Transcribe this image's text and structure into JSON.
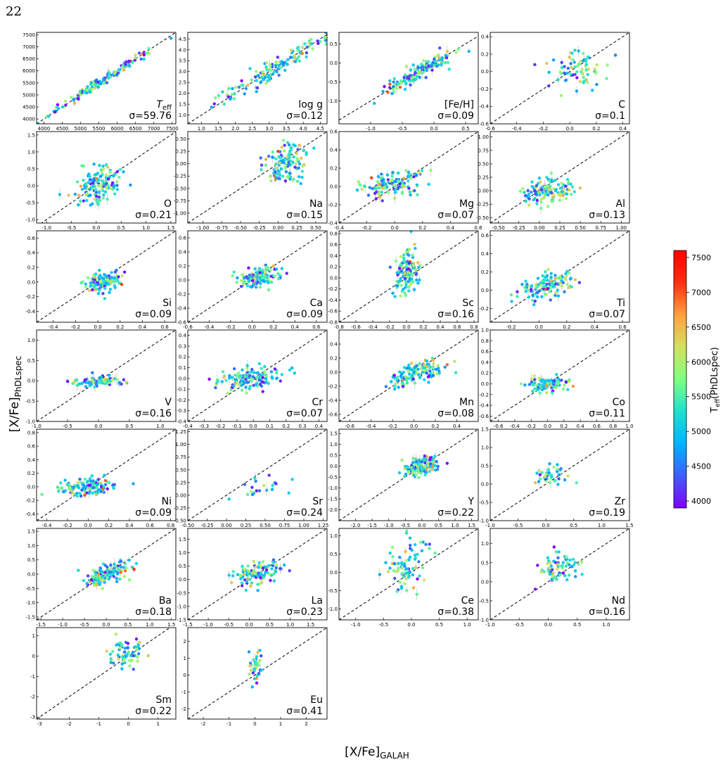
{
  "page": {
    "number": "22"
  },
  "figure": {
    "ylabel": "[X/Fe]",
    "ylabel_sub": "PhDLspec",
    "xlabel": "[X/Fe]",
    "xlabel_sub": "GALAH"
  },
  "colorbar": {
    "label": "T",
    "label_sub": "eff",
    "label_suffix": "(PhDLspec)",
    "range": [
      3900,
      7600
    ],
    "ticks": [
      "4000",
      "4500",
      "5000",
      "5500",
      "6000",
      "6500",
      "7000",
      "7500"
    ],
    "colors": [
      "#7f00ff",
      "#3f5efb",
      "#00b4ff",
      "#20e0d0",
      "#7fff7f",
      "#d4e060",
      "#ffa040",
      "#ff3010",
      "#ff0000"
    ]
  },
  "chart_data": [
    {
      "type": "scatter",
      "label": "T",
      "label_sub": "eff",
      "sigma": "σ=59.76",
      "xlim": [
        3800,
        7600
      ],
      "ylim": [
        3800,
        7600
      ],
      "xticks": [
        "4000",
        "4500",
        "5000",
        "5500",
        "6000",
        "6500",
        "7000",
        "7500"
      ],
      "yticks": [
        "4000",
        "4500",
        "5000",
        "5500",
        "6000",
        "6500",
        "7000",
        "7500"
      ],
      "center": [
        5500,
        5500
      ],
      "spread": [
        800,
        800
      ],
      "corr": 0.99,
      "n": 140
    },
    {
      "type": "scatter",
      "label": "log g",
      "sigma": "σ=0.12",
      "xlim": [
        0.6,
        4.7
      ],
      "ylim": [
        0.6,
        4.8
      ],
      "xticks": [
        "1.0",
        "1.5",
        "2.0",
        "2.5",
        "3.0",
        "3.5",
        "4.0",
        "4.5"
      ],
      "yticks": [
        "1.0",
        "1.5",
        "2.0",
        "2.5",
        "3.0",
        "3.5",
        "4.0",
        "4.5"
      ],
      "center": [
        3.3,
        3.3
      ],
      "spread": [
        0.9,
        0.9
      ],
      "corr": 0.97,
      "n": 140
    },
    {
      "type": "scatter",
      "label": "[Fe/H]",
      "sigma": "σ=0.09",
      "xlim": [
        -1.5,
        0.7
      ],
      "ylim": [
        -1.6,
        0.8
      ],
      "xticks": [
        "-1.0",
        "-0.5",
        "0.0",
        "0.5"
      ],
      "yticks": [
        "-1.0",
        "-0.5",
        "0.0",
        "0.5"
      ],
      "center": [
        -0.2,
        -0.2
      ],
      "spread": [
        0.3,
        0.3
      ],
      "corr": 0.92,
      "n": 130
    },
    {
      "type": "scatter",
      "label": "C",
      "sigma": "σ=0.1",
      "xlim": [
        -0.6,
        0.45
      ],
      "ylim": [
        -0.6,
        0.45
      ],
      "xticks": [
        "-0.6",
        "-0.4",
        "-0.2",
        "0.0",
        "0.2",
        "0.4"
      ],
      "yticks": [
        "-0.6",
        "-0.4",
        "-0.2",
        "0.0",
        "0.2",
        "0.4"
      ],
      "center": [
        0.05,
        0.02
      ],
      "spread": [
        0.1,
        0.12
      ],
      "corr": 0.2,
      "n": 70
    },
    {
      "type": "scatter",
      "label": "O",
      "sigma": "σ=0.21",
      "xlim": [
        -1.2,
        1.6
      ],
      "ylim": [
        -1.1,
        1.6
      ],
      "xticks": [
        "-1.0",
        "-0.5",
        "0.0",
        "0.5",
        "1.0",
        "1.5"
      ],
      "yticks": [
        "-1.0",
        "-0.5",
        "0.0",
        "0.5",
        "1.0",
        "1.5"
      ],
      "center": [
        0.05,
        0.0
      ],
      "spread": [
        0.25,
        0.3
      ],
      "corr": 0.3,
      "n": 130
    },
    {
      "type": "scatter",
      "label": "Na",
      "sigma": "σ=0.15",
      "xlim": [
        -1.2,
        0.65
      ],
      "ylim": [
        -1.2,
        0.65
      ],
      "xticks": [
        "-1.00",
        "-0.75",
        "-0.50",
        "-0.25",
        "0.00",
        "0.25",
        "0.50"
      ],
      "yticks": [
        "-1.00",
        "-0.75",
        "-0.50",
        "-0.25",
        "0.00",
        "0.25",
        "0.50"
      ],
      "center": [
        0.1,
        0.0
      ],
      "spread": [
        0.12,
        0.2
      ],
      "corr": 0.2,
      "n": 120
    },
    {
      "type": "scatter",
      "label": "Mg",
      "sigma": "σ=0.07",
      "xlim": [
        -0.4,
        0.6
      ],
      "ylim": [
        -0.4,
        0.6
      ],
      "xticks": [
        "-0.4",
        "-0.2",
        "0.0",
        "0.2",
        "0.4",
        "0.6"
      ],
      "yticks": [
        "-0.4",
        "-0.2",
        "0.0",
        "0.2",
        "0.4",
        "0.6"
      ],
      "center": [
        0.0,
        0.03
      ],
      "spread": [
        0.12,
        0.07
      ],
      "corr": 0.4,
      "n": 130
    },
    {
      "type": "scatter",
      "label": "Al",
      "sigma": "σ=0.13",
      "xlim": [
        -0.6,
        1.1
      ],
      "ylim": [
        -0.6,
        1.1
      ],
      "xticks": [
        "-0.50",
        "-0.25",
        "0.00",
        "0.25",
        "0.50",
        "0.75",
        "1.00"
      ],
      "yticks": [
        "-0.50",
        "-0.25",
        "0.00",
        "0.25",
        "0.50",
        "0.75",
        "1.00"
      ],
      "center": [
        0.1,
        0.0
      ],
      "spread": [
        0.15,
        0.12
      ],
      "corr": 0.3,
      "n": 130
    },
    {
      "type": "scatter",
      "label": "Si",
      "sigma": "σ=0.09",
      "xlim": [
        -0.55,
        0.7
      ],
      "ylim": [
        -0.55,
        0.7
      ],
      "xticks": [
        "-0.4",
        "-0.2",
        "0.0",
        "0.2",
        "0.4",
        "0.6"
      ],
      "yticks": [
        "-0.4",
        "-0.2",
        "0.0",
        "0.2",
        "0.4",
        "0.6"
      ],
      "center": [
        0.03,
        0.0
      ],
      "spread": [
        0.08,
        0.07
      ],
      "corr": 0.3,
      "n": 120
    },
    {
      "type": "scatter",
      "label": "Ca",
      "sigma": "σ=0.09",
      "xlim": [
        -0.6,
        0.7
      ],
      "ylim": [
        -0.6,
        0.7
      ],
      "xticks": [
        "-0.6",
        "-0.4",
        "-0.2",
        "0.0",
        "0.2",
        "0.4",
        "0.6"
      ],
      "yticks": [
        "-0.6",
        "-0.4",
        "-0.2",
        "0.0",
        "0.2",
        "0.4",
        "0.6"
      ],
      "center": [
        0.05,
        0.02
      ],
      "spread": [
        0.1,
        0.07
      ],
      "corr": 0.3,
      "n": 120
    },
    {
      "type": "scatter",
      "label": "Sc",
      "sigma": "σ=0.16",
      "xlim": [
        -0.8,
        0.85
      ],
      "ylim": [
        -0.8,
        0.85
      ],
      "xticks": [
        "-0.8",
        "-0.6",
        "-0.4",
        "-0.2",
        "0.0",
        "0.2",
        "0.4",
        "0.6",
        "0.8"
      ],
      "yticks": [
        "-0.8",
        "-0.6",
        "-0.4",
        "-0.2",
        "0.0",
        "0.2",
        "0.4",
        "0.6",
        "0.8"
      ],
      "center": [
        0.0,
        0.1
      ],
      "spread": [
        0.07,
        0.2
      ],
      "corr": 0.2,
      "n": 130
    },
    {
      "type": "scatter",
      "label": "Ti",
      "sigma": "σ=0.07",
      "xlim": [
        -0.35,
        0.65
      ],
      "ylim": [
        -0.35,
        0.65
      ],
      "xticks": [
        "-0.2",
        "0.0",
        "0.2",
        "0.4",
        "0.6"
      ],
      "yticks": [
        "-0.2",
        "0.0",
        "0.2",
        "0.4",
        "0.6"
      ],
      "center": [
        0.05,
        0.05
      ],
      "spread": [
        0.1,
        0.08
      ],
      "corr": 0.5,
      "n": 120
    },
    {
      "type": "scatter",
      "label": "V",
      "sigma": "σ=0.16",
      "xlim": [
        -1.0,
        1.25
      ],
      "ylim": [
        -1.0,
        1.25
      ],
      "xticks": [
        "-1.0",
        "-0.5",
        "0.0",
        "0.5",
        "1.0"
      ],
      "yticks": [
        "-1.0",
        "-0.5",
        "0.0",
        "0.5",
        "1.0"
      ],
      "center": [
        0.0,
        0.0
      ],
      "spread": [
        0.2,
        0.07
      ],
      "corr": 0.2,
      "n": 80
    },
    {
      "type": "scatter",
      "label": "Cr",
      "sigma": "σ=0.07",
      "xlim": [
        -0.4,
        0.45
      ],
      "ylim": [
        -0.4,
        0.45
      ],
      "xticks": [
        "-0.4",
        "-0.3",
        "-0.2",
        "-0.1",
        "0.0",
        "0.1",
        "0.2",
        "0.3",
        "0.4"
      ],
      "yticks": [
        "-0.4",
        "-0.3",
        "-0.2",
        "-0.1",
        "0.0",
        "0.1",
        "0.2",
        "0.3",
        "0.4"
      ],
      "center": [
        -0.02,
        0.0
      ],
      "spread": [
        0.1,
        0.05
      ],
      "corr": 0.3,
      "n": 130
    },
    {
      "type": "scatter",
      "label": "Mn",
      "sigma": "σ=0.08",
      "xlim": [
        -0.7,
        0.6
      ],
      "ylim": [
        -0.7,
        0.6
      ],
      "xticks": [
        "-0.6",
        "-0.4",
        "-0.2",
        "0.0",
        "0.2",
        "0.4"
      ],
      "yticks": [
        "-0.6",
        "-0.4",
        "-0.2",
        "0.0",
        "0.2",
        "0.4"
      ],
      "center": [
        0.0,
        -0.02
      ],
      "spread": [
        0.12,
        0.1
      ],
      "corr": 0.6,
      "n": 130
    },
    {
      "type": "scatter",
      "label": "Co",
      "sigma": "σ=0.11",
      "xlim": [
        -0.7,
        1.0
      ],
      "ylim": [
        -0.7,
        1.0
      ],
      "xticks": [
        "-0.6",
        "-0.4",
        "-0.2",
        "0.0",
        "0.2",
        "0.4",
        "0.6",
        "0.8",
        "1.0"
      ],
      "yticks": [
        "-0.6",
        "-0.4",
        "-0.2",
        "0.0",
        "0.2",
        "0.4",
        "0.6",
        "0.8",
        "1.0"
      ],
      "center": [
        0.0,
        0.0
      ],
      "spread": [
        0.15,
        0.07
      ],
      "corr": 0.2,
      "n": 90
    },
    {
      "type": "scatter",
      "label": "Ni",
      "sigma": "σ=0.09",
      "xlim": [
        -0.5,
        0.85
      ],
      "ylim": [
        -0.5,
        0.85
      ],
      "xticks": [
        "-0.4",
        "-0.2",
        "0.0",
        "0.2",
        "0.4",
        "0.6",
        "0.8"
      ],
      "yticks": [
        "-0.4",
        "-0.2",
        "0.0",
        "0.2",
        "0.4",
        "0.6",
        "0.8"
      ],
      "center": [
        0.0,
        0.0
      ],
      "spread": [
        0.12,
        0.06
      ],
      "corr": 0.3,
      "n": 130
    },
    {
      "type": "scatter",
      "label": "Sr",
      "sigma": "σ=0.24",
      "xlim": [
        -0.5,
        1.3
      ],
      "ylim": [
        -0.5,
        1.3
      ],
      "xticks": [
        "-0.50",
        "-0.25",
        "0.00",
        "0.25",
        "0.50",
        "0.75",
        "1.00",
        "1.25"
      ],
      "yticks": [
        "-0.50",
        "-0.25",
        "0.00",
        "0.25",
        "0.50",
        "0.75",
        "1.00",
        "1.25"
      ],
      "center": [
        0.45,
        0.15
      ],
      "spread": [
        0.2,
        0.15
      ],
      "corr": 0.2,
      "n": 20
    },
    {
      "type": "scatter",
      "label": "Y",
      "sigma": "σ=0.22",
      "xlim": [
        -2.5,
        1.7
      ],
      "ylim": [
        -2.5,
        1.7
      ],
      "xticks": [
        "-2.0",
        "-1.5",
        "-1.0",
        "-0.5",
        "0.0",
        "0.5",
        "1.0",
        "1.5"
      ],
      "yticks": [
        "-2.0",
        "-1.5",
        "-1.0",
        "-0.5",
        "0.0",
        "0.5",
        "1.0",
        "1.5"
      ],
      "center": [
        0.0,
        0.0
      ],
      "spread": [
        0.25,
        0.25
      ],
      "corr": 0.4,
      "n": 130
    },
    {
      "type": "scatter",
      "label": "Zr",
      "sigma": "σ=0.19",
      "xlim": [
        -1.0,
        1.5
      ],
      "ylim": [
        -1.0,
        1.5
      ],
      "xticks": [
        "-1.0",
        "-0.5",
        "0.0",
        "0.5",
        "1.0",
        "1.5"
      ],
      "yticks": [
        "-1.0",
        "-0.5",
        "0.0",
        "0.5",
        "1.0",
        "1.5"
      ],
      "center": [
        0.1,
        0.25
      ],
      "spread": [
        0.15,
        0.15
      ],
      "corr": 0.3,
      "n": 40
    },
    {
      "type": "scatter",
      "label": "Ba",
      "sigma": "σ=0.18",
      "xlim": [
        -1.6,
        1.6
      ],
      "ylim": [
        -1.6,
        1.6
      ],
      "xticks": [
        "-1.5",
        "-1.0",
        "-0.5",
        "0.0",
        "0.5",
        "1.0",
        "1.5"
      ],
      "yticks": [
        "-1.5",
        "-1.0",
        "-0.5",
        "0.0",
        "0.5",
        "1.0",
        "1.5"
      ],
      "center": [
        0.0,
        0.0
      ],
      "spread": [
        0.25,
        0.2
      ],
      "corr": 0.5,
      "n": 130
    },
    {
      "type": "scatter",
      "label": "La",
      "sigma": "σ=0.23",
      "xlim": [
        -1.5,
        1.9
      ],
      "ylim": [
        -1.5,
        1.9
      ],
      "xticks": [
        "-1.5",
        "-1.0",
        "-0.5",
        "0.0",
        "0.5",
        "1.0",
        "1.5"
      ],
      "yticks": [
        "-1.5",
        "-1.0",
        "-0.5",
        "0.0",
        "0.5",
        "1.0",
        "1.5"
      ],
      "center": [
        0.2,
        0.25
      ],
      "spread": [
        0.3,
        0.25
      ],
      "corr": 0.3,
      "n": 110
    },
    {
      "type": "scatter",
      "label": "Ce",
      "sigma": "σ=0.38",
      "xlim": [
        -1.3,
        1.2
      ],
      "ylim": [
        -1.3,
        1.2
      ],
      "xticks": [
        "-1.0",
        "-0.5",
        "0.0",
        "0.5",
        "1.0"
      ],
      "yticks": [
        "-1.0",
        "-0.5",
        "0.0",
        "0.5",
        "1.0"
      ],
      "center": [
        -0.05,
        0.2
      ],
      "spread": [
        0.2,
        0.35
      ],
      "corr": 0.2,
      "n": 80
    },
    {
      "type": "scatter",
      "label": "Nd",
      "sigma": "σ=0.16",
      "xlim": [
        -1.0,
        1.4
      ],
      "ylim": [
        -1.0,
        1.4
      ],
      "xticks": [
        "-1.0",
        "-0.5",
        "0.0",
        "0.5",
        "1.0"
      ],
      "yticks": [
        "-1.0",
        "-0.5",
        "0.0",
        "0.5",
        "1.0"
      ],
      "center": [
        0.15,
        0.3
      ],
      "spread": [
        0.2,
        0.2
      ],
      "corr": 0.3,
      "n": 70
    },
    {
      "type": "scatter",
      "label": "Sm",
      "sigma": "σ=0.22",
      "xlim": [
        -3.1,
        1.6
      ],
      "ylim": [
        -3.1,
        1.4
      ],
      "xticks": [
        "-3",
        "-2",
        "-1",
        "0",
        "1"
      ],
      "yticks": [
        "-3",
        "-2",
        "-1",
        "0",
        "1"
      ],
      "center": [
        -0.1,
        0.1
      ],
      "spread": [
        0.3,
        0.4
      ],
      "corr": 0.2,
      "n": 70
    },
    {
      "type": "scatter",
      "label": "Eu",
      "sigma": "σ=0.41",
      "xlim": [
        -2.6,
        2.8
      ],
      "ylim": [
        -2.6,
        2.8
      ],
      "xticks": [
        "-2",
        "-1",
        "0",
        "1",
        "2"
      ],
      "yticks": [
        "-2",
        "-1",
        "0",
        "1",
        "2"
      ],
      "center": [
        0.05,
        0.4
      ],
      "spread": [
        0.15,
        0.6
      ],
      "corr": 0.2,
      "n": 35
    }
  ]
}
